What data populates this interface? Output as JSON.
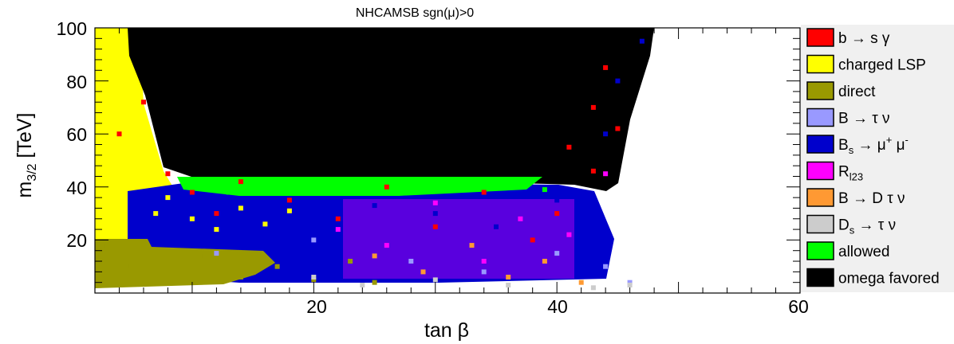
{
  "chart_data": {
    "type": "scatter",
    "title": "NHCAMSB    sgn(μ)>0",
    "xlabel": "tan β",
    "ylabel": "m3/2 [TeV]",
    "ylabel_main": "m",
    "ylabel_sub": "3/2",
    "ylabel_tail": " [TeV]",
    "xlim": [
      2,
      60
    ],
    "ylim": [
      0,
      100
    ],
    "xticks": [
      20,
      40,
      60
    ],
    "yticks": [
      20,
      40,
      60,
      80,
      100
    ],
    "grid": false,
    "legend_position": "right",
    "series": [
      {
        "name": "b → s γ",
        "color": "#ff0000",
        "legend": {
          "main": "b → s γ"
        },
        "points": [
          [
            4,
            60
          ],
          [
            6,
            72
          ],
          [
            8,
            45
          ],
          [
            10,
            38
          ],
          [
            12,
            30
          ],
          [
            14,
            42
          ],
          [
            18,
            35
          ],
          [
            22,
            28
          ],
          [
            26,
            40
          ],
          [
            30,
            25
          ],
          [
            34,
            38
          ],
          [
            38,
            20
          ],
          [
            41,
            55
          ],
          [
            43,
            70
          ],
          [
            44,
            85
          ],
          [
            45,
            62
          ],
          [
            43,
            46
          ],
          [
            40,
            30
          ]
        ]
      },
      {
        "name": "charged LSP",
        "color": "#ffff00",
        "legend": {
          "main": "charged LSP"
        },
        "points": [
          [
            3,
            95
          ],
          [
            4,
            80
          ],
          [
            5,
            60
          ],
          [
            6,
            45
          ],
          [
            7,
            30
          ],
          [
            8,
            36
          ],
          [
            10,
            28
          ],
          [
            12,
            24
          ],
          [
            14,
            32
          ],
          [
            16,
            26
          ],
          [
            18,
            31
          ]
        ]
      },
      {
        "name": "direct",
        "color": "#999900",
        "legend": {
          "main": "direct"
        },
        "points": [
          [
            3,
            18
          ],
          [
            5,
            10
          ],
          [
            8,
            8
          ],
          [
            11,
            14
          ],
          [
            14,
            6
          ],
          [
            17,
            10
          ],
          [
            20,
            5
          ],
          [
            23,
            12
          ],
          [
            25,
            4
          ]
        ]
      },
      {
        "name": "B → τ ν",
        "color": "#9999ff",
        "legend": {
          "main": "B → τ ν"
        },
        "points": [
          [
            12,
            15
          ],
          [
            20,
            20
          ],
          [
            28,
            12
          ],
          [
            34,
            8
          ],
          [
            40,
            15
          ],
          [
            44,
            10
          ],
          [
            46,
            4
          ]
        ]
      },
      {
        "name": "Bs → μ+ μ-",
        "color": "#0000cc",
        "legend": {
          "main": "B",
          "sub": "s",
          "tail": " → μ",
          "sup": "+",
          "tail2": " μ",
          "sup2": "-"
        },
        "points": [
          [
            15,
            20
          ],
          [
            20,
            28
          ],
          [
            25,
            33
          ],
          [
            30,
            30
          ],
          [
            35,
            25
          ],
          [
            40,
            35
          ],
          [
            43,
            20
          ],
          [
            44,
            60
          ],
          [
            45,
            80
          ],
          [
            47,
            95
          ]
        ]
      },
      {
        "name": "Rl23",
        "color": "#ff00ff",
        "legend": {
          "main": "R",
          "sub": "l23"
        },
        "points": [
          [
            22,
            24
          ],
          [
            26,
            18
          ],
          [
            30,
            34
          ],
          [
            34,
            12
          ],
          [
            37,
            28
          ],
          [
            41,
            22
          ],
          [
            44,
            45
          ]
        ]
      },
      {
        "name": "B → D τ ν",
        "color": "#ff9933",
        "legend": {
          "main": "B → D τ ν"
        },
        "points": [
          [
            25,
            14
          ],
          [
            29,
            8
          ],
          [
            33,
            18
          ],
          [
            36,
            6
          ],
          [
            39,
            12
          ],
          [
            42,
            4
          ]
        ]
      },
      {
        "name": "Ds → τ ν",
        "color": "#cccccc",
        "legend": {
          "main": "D",
          "sub": "s",
          "tail": " → τ ν"
        },
        "points": [
          [
            20,
            6
          ],
          [
            24,
            3
          ],
          [
            30,
            5
          ],
          [
            36,
            3
          ],
          [
            43,
            2
          ],
          [
            46,
            3
          ]
        ]
      },
      {
        "name": "allowed",
        "color": "#00ff00",
        "legend": {
          "main": "allowed"
        },
        "points": [
          [
            10,
            40
          ],
          [
            13,
            38
          ],
          [
            16,
            41
          ],
          [
            19,
            39
          ],
          [
            22,
            42
          ],
          [
            25,
            38
          ],
          [
            28,
            41
          ],
          [
            31,
            39
          ],
          [
            34,
            40
          ],
          [
            37,
            42
          ],
          [
            39,
            39
          ]
        ]
      },
      {
        "name": "omega favored",
        "color": "#000000",
        "legend": {
          "main": "omega favored"
        },
        "points": [
          [
            8,
            98
          ],
          [
            12,
            90
          ],
          [
            16,
            80
          ],
          [
            20,
            70
          ],
          [
            24,
            85
          ],
          [
            28,
            60
          ],
          [
            32,
            75
          ],
          [
            36,
            55
          ],
          [
            40,
            90
          ],
          [
            43,
            98
          ],
          [
            46,
            100
          ],
          [
            9,
            50
          ],
          [
            14,
            60
          ]
        ]
      }
    ]
  }
}
